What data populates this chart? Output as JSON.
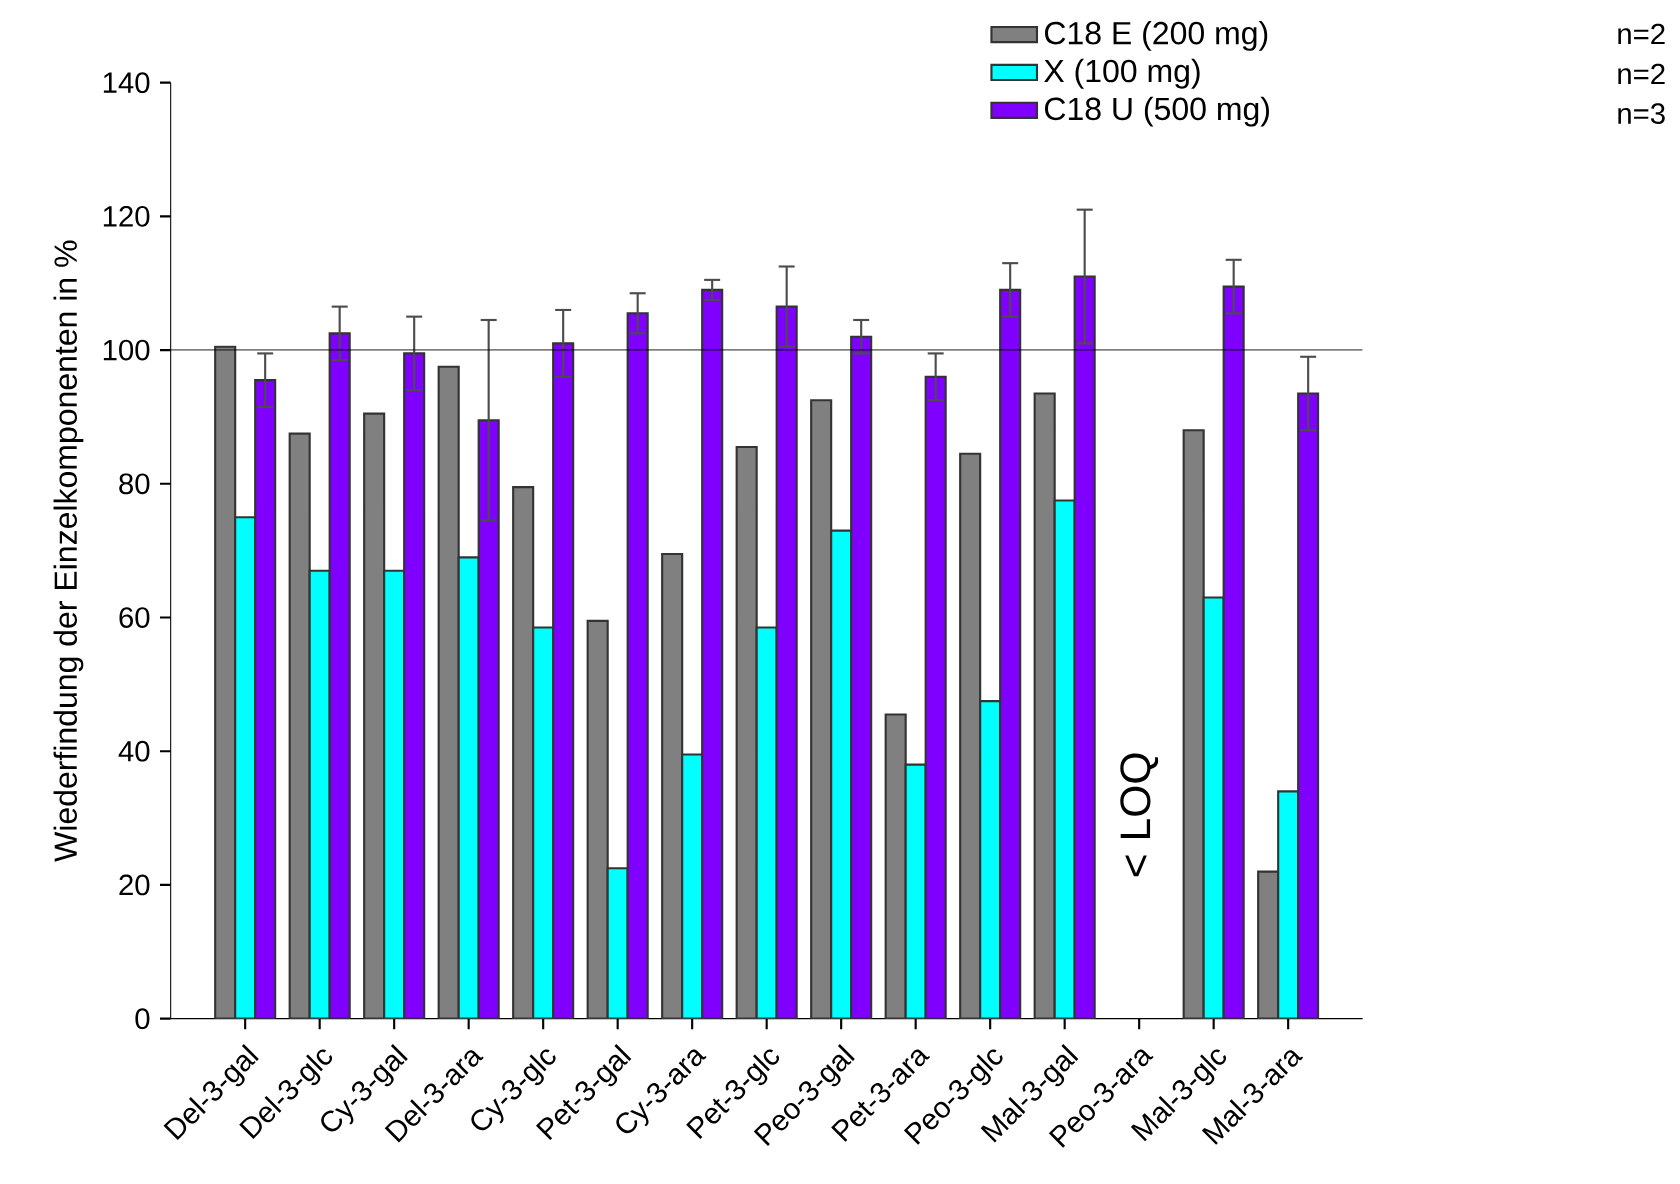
{
  "chart_data": {
    "type": "bar",
    "ylabel": "Wiederfindung der Einzelkomponenten in %",
    "categories": [
      "Del-3-gal",
      "Del-3-glc",
      "Cy-3-gal",
      "Del-3-ara",
      "Cy-3-glc",
      "Pet-3-gal",
      "Cy-3-ara",
      "Pet-3-glc",
      "Peo-3-gal",
      "Pet-3-ara",
      "Peo-3-glc",
      "Mal-3-gal",
      "Peo-3-ara",
      "Mal-3-glc",
      "Mal-3-ara"
    ],
    "series": [
      {
        "name": "C18 E (200 mg)",
        "color": "#808080",
        "values": [
          100.5,
          87.5,
          90.5,
          97.5,
          79.5,
          59.5,
          69.5,
          85.5,
          92.5,
          45.5,
          84.5,
          93.5,
          null,
          88,
          22
        ]
      },
      {
        "name": "X (100 mg)",
        "color": "#00ffff",
        "values": [
          75,
          67,
          67,
          69,
          58.5,
          22.5,
          39.5,
          58.5,
          73,
          38,
          47.5,
          77.5,
          null,
          63,
          34
        ]
      },
      {
        "name": "C18 U (500 mg)",
        "color": "#8000ff",
        "values": [
          95.5,
          102.5,
          99.5,
          89.5,
          101,
          105.5,
          109,
          106.5,
          102,
          96,
          109,
          111,
          null,
          109.5,
          93.5
        ],
        "errors": [
          4,
          4,
          5.5,
          15,
          5,
          3,
          1.5,
          6,
          2.5,
          3.5,
          4,
          10,
          null,
          4,
          5.5
        ]
      }
    ],
    "ylim": [
      0,
      140
    ],
    "yticks": [
      0,
      20,
      40,
      60,
      80,
      100,
      120,
      140
    ],
    "ref_lines": [
      {
        "axis": "y",
        "value": 100
      }
    ],
    "legend": "top right",
    "annotations": [
      "< LOQ",
      "n=2",
      "n=2",
      "n=3"
    ]
  }
}
